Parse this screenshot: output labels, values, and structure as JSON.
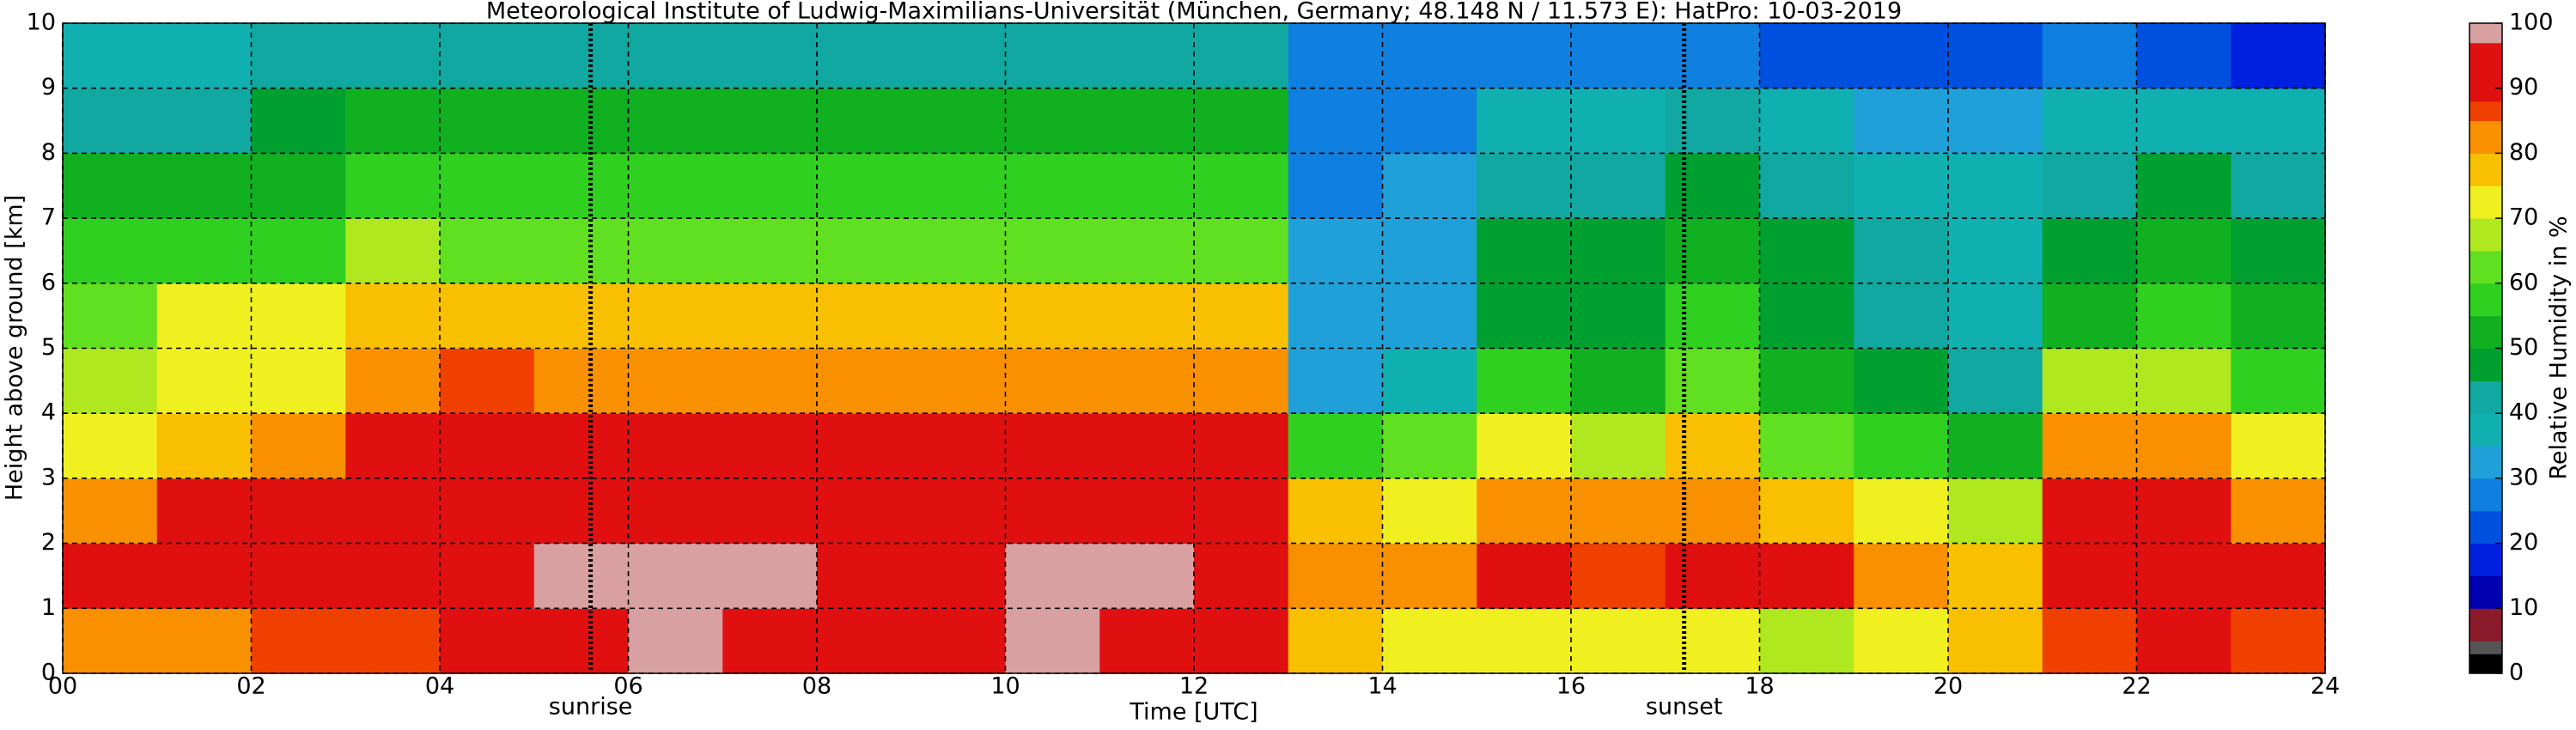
{
  "chart_data": {
    "type": "heatmap",
    "title": "Meteorological Institute of Ludwig-Maximilians-Universität (München, Germany; 48.148 N / 11.573 E):    HatPro: 10-03-2019",
    "x_label": "Time [UTC]",
    "y_label": "Height above ground [km]",
    "colorbar_label": "Relative Humidity in %",
    "xlim": [
      0,
      24
    ],
    "ylim": [
      0,
      10
    ],
    "xticks": [
      {
        "value": 0,
        "label": "00"
      },
      {
        "value": 2,
        "label": "02"
      },
      {
        "value": 4,
        "label": "04"
      },
      {
        "value": 6,
        "label": "06"
      },
      {
        "value": 8,
        "label": "08"
      },
      10,
      12,
      14,
      16,
      18,
      20,
      22,
      24
    ],
    "yticks": [
      0,
      1,
      2,
      3,
      4,
      5,
      6,
      7,
      8,
      9,
      10
    ],
    "clim": [
      0,
      100
    ],
    "cticks": [
      0,
      10,
      20,
      30,
      40,
      50,
      60,
      70,
      80,
      90,
      100
    ],
    "grid": true,
    "colormap": [
      {
        "value": 0,
        "color": "#000000"
      },
      {
        "value": 3,
        "color": "#555555"
      },
      {
        "value": 5,
        "color": "#8b1a2a"
      },
      {
        "value": 10,
        "color": "#0000b0"
      },
      {
        "value": 15,
        "color": "#0020e0"
      },
      {
        "value": 20,
        "color": "#0050e0"
      },
      {
        "value": 25,
        "color": "#1080e0"
      },
      {
        "value": 30,
        "color": "#20a0d8"
      },
      {
        "value": 35,
        "color": "#10b0b0"
      },
      {
        "value": 40,
        "color": "#10a8a0"
      },
      {
        "value": 45,
        "color": "#00a030"
      },
      {
        "value": 50,
        "color": "#10b020"
      },
      {
        "value": 55,
        "color": "#30d020"
      },
      {
        "value": 60,
        "color": "#60e020"
      },
      {
        "value": 65,
        "color": "#b0e820"
      },
      {
        "value": 70,
        "color": "#f0f020"
      },
      {
        "value": 75,
        "color": "#f8c000"
      },
      {
        "value": 80,
        "color": "#f89000"
      },
      {
        "value": 85,
        "color": "#f04000"
      },
      {
        "value": 88,
        "color": "#e01010"
      },
      {
        "value": 97,
        "color": "#d8a0a0"
      }
    ],
    "annotations": [
      {
        "text": "sunrise",
        "x": 5.6
      },
      {
        "text": "sunset",
        "x": 17.2
      }
    ],
    "x_bins": [
      0,
      1,
      2,
      3,
      4,
      5,
      6,
      7,
      8,
      9,
      10,
      11,
      12,
      13,
      14,
      15,
      16,
      17,
      18,
      19,
      20,
      21,
      22,
      23,
      24
    ],
    "y_bins": [
      0,
      1,
      2,
      3,
      4,
      5,
      6,
      7,
      8,
      9,
      10
    ],
    "z": [
      [
        82,
        82,
        85,
        85,
        95,
        96,
        97,
        96,
        95,
        96,
        97,
        96,
        92,
        78,
        72,
        70,
        72,
        70,
        68,
        70,
        75,
        85,
        88,
        85
      ],
      [
        88,
        90,
        90,
        92,
        95,
        97,
        97,
        97,
        95,
        96,
        97,
        97,
        94,
        82,
        80,
        88,
        85,
        88,
        90,
        80,
        78,
        92,
        92,
        90
      ],
      [
        82,
        88,
        90,
        92,
        92,
        92,
        92,
        92,
        92,
        92,
        92,
        92,
        92,
        75,
        70,
        80,
        80,
        82,
        75,
        70,
        65,
        90,
        90,
        82
      ],
      [
        72,
        78,
        80,
        90,
        90,
        90,
        90,
        90,
        90,
        90,
        90,
        90,
        90,
        58,
        62,
        70,
        65,
        75,
        60,
        55,
        50,
        82,
        82,
        70
      ],
      [
        68,
        72,
        72,
        82,
        85,
        82,
        82,
        82,
        82,
        82,
        82,
        82,
        82,
        30,
        35,
        55,
        50,
        62,
        50,
        45,
        40,
        65,
        68,
        58
      ],
      [
        62,
        70,
        70,
        75,
        75,
        75,
        75,
        75,
        75,
        75,
        75,
        75,
        75,
        30,
        30,
        48,
        45,
        55,
        45,
        40,
        38,
        52,
        58,
        52
      ],
      [
        58,
        58,
        58,
        65,
        62,
        62,
        62,
        62,
        62,
        62,
        62,
        62,
        62,
        30,
        30,
        45,
        45,
        52,
        45,
        40,
        38,
        48,
        52,
        48
      ],
      [
        50,
        50,
        52,
        55,
        55,
        55,
        55,
        55,
        55,
        55,
        55,
        55,
        55,
        28,
        30,
        40,
        42,
        48,
        40,
        38,
        35,
        42,
        45,
        42
      ],
      [
        42,
        42,
        45,
        52,
        50,
        50,
        50,
        50,
        50,
        50,
        50,
        50,
        50,
        28,
        28,
        35,
        35,
        40,
        35,
        32,
        32,
        38,
        38,
        38
      ],
      [
        38,
        38,
        40,
        40,
        40,
        40,
        40,
        40,
        40,
        40,
        40,
        40,
        40,
        25,
        25,
        28,
        28,
        28,
        22,
        20,
        20,
        25,
        20,
        18
      ]
    ]
  }
}
